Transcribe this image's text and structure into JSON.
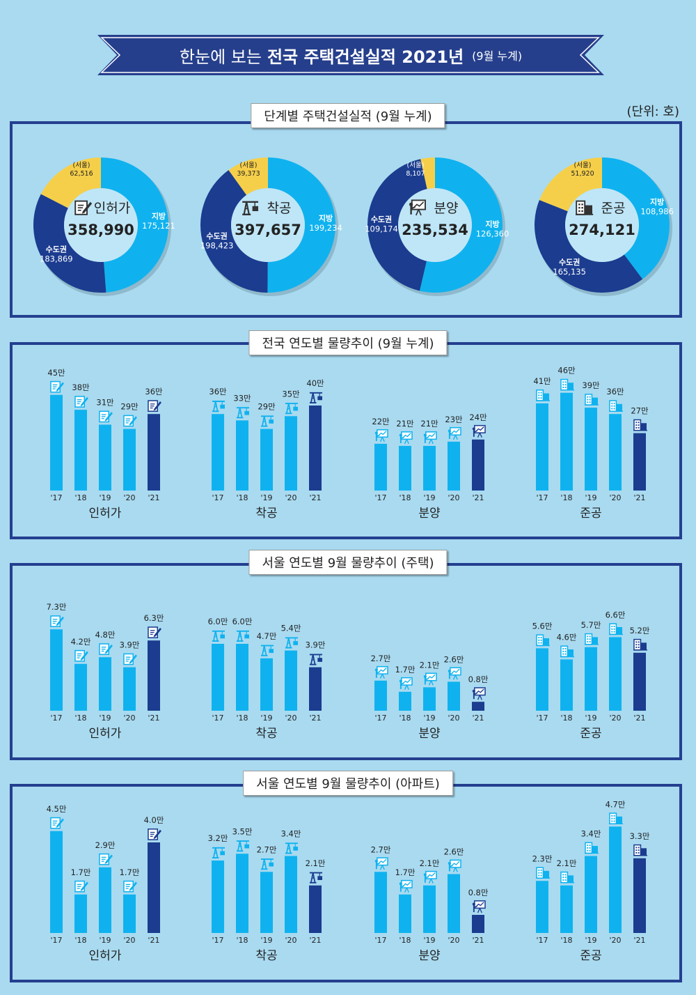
{
  "header": {
    "title_light": "한눈에 보는",
    "title_bold": "전국 주택건설실적 2021년",
    "title_note": "(9월 누계)",
    "unit": "(단위: 호)"
  },
  "colors": {
    "light": "#0fb2ef",
    "dark": "#1b3c8f",
    "seoul": "#f6cf4a",
    "border": "#243f8f",
    "background": "#a9daf0"
  },
  "donut_section": {
    "title": "단계별 주택건설실적 (9월 누계)",
    "seg_labels": {
      "seoul": "(서울)",
      "capital": "수도권",
      "regional": "지방"
    },
    "donuts": [
      {
        "name": "인허가",
        "icon": "permit-icon",
        "total": "358,990",
        "seoul": "62,516",
        "capital": "183,869",
        "regional": "175,121"
      },
      {
        "name": "착공",
        "icon": "crane-icon",
        "total": "397,657",
        "seoul": "39,373",
        "capital": "198,423",
        "regional": "199,234"
      },
      {
        "name": "분양",
        "icon": "presentation-icon",
        "total": "235,534",
        "seoul": "8,107",
        "capital": "109,174",
        "regional": "126,360"
      },
      {
        "name": "준공",
        "icon": "building-icon",
        "total": "274,121",
        "seoul": "51,920",
        "capital": "165,135",
        "regional": "108,986"
      }
    ]
  },
  "chart_data": [
    {
      "type": "donut",
      "title": "단계별 주택건설실적 (9월 누계)",
      "unit": "호",
      "charts": [
        {
          "name": "인허가",
          "total": 358990,
          "segments": [
            {
              "name": "수도권",
              "value": 183869,
              "sub": {
                "name": "서울",
                "value": 62516
              }
            },
            {
              "name": "지방",
              "value": 175121
            }
          ]
        },
        {
          "name": "착공",
          "total": 397657,
          "segments": [
            {
              "name": "수도권",
              "value": 198423,
              "sub": {
                "name": "서울",
                "value": 39373
              }
            },
            {
              "name": "지방",
              "value": 199234
            }
          ]
        },
        {
          "name": "분양",
          "total": 235534,
          "segments": [
            {
              "name": "수도권",
              "value": 109174,
              "sub": {
                "name": "서울",
                "value": 8107
              }
            },
            {
              "name": "지방",
              "value": 126360
            }
          ]
        },
        {
          "name": "준공",
          "total": 274121,
          "segments": [
            {
              "name": "수도권",
              "value": 165135,
              "sub": {
                "name": "서울",
                "value": 51920
              }
            },
            {
              "name": "지방",
              "value": 108986
            }
          ]
        }
      ]
    },
    {
      "type": "bar",
      "title": "전국 연도별 물량추이 (9월 누계)",
      "categories": [
        "'17",
        "'18",
        "'19",
        "'20",
        "'21"
      ],
      "unit": "만",
      "groups": [
        {
          "name": "인허가",
          "values": [
            45,
            38,
            31,
            29,
            36
          ],
          "labels": [
            "45만",
            "38만",
            "31만",
            "29만",
            "36만"
          ]
        },
        {
          "name": "착공",
          "values": [
            36,
            33,
            29,
            35,
            40
          ],
          "labels": [
            "36만",
            "33만",
            "29만",
            "35만",
            "40만"
          ]
        },
        {
          "name": "분양",
          "values": [
            22,
            21,
            21,
            23,
            24
          ],
          "labels": [
            "22만",
            "21만",
            "21만",
            "23만",
            "24만"
          ]
        },
        {
          "name": "준공",
          "values": [
            41,
            46,
            39,
            36,
            27
          ],
          "labels": [
            "41만",
            "46만",
            "39만",
            "36만",
            "27만"
          ]
        }
      ]
    },
    {
      "type": "bar",
      "title": "서울 연도별 9월  물량추이 (주택)",
      "categories": [
        "'17",
        "'18",
        "'19",
        "'20",
        "'21"
      ],
      "unit": "만",
      "groups": [
        {
          "name": "인허가",
          "values": [
            7.3,
            4.2,
            4.8,
            3.9,
            6.3
          ],
          "labels": [
            "7.3만",
            "4.2만",
            "4.8만",
            "3.9만",
            "6.3만"
          ]
        },
        {
          "name": "착공",
          "values": [
            6.0,
            6.0,
            4.7,
            5.4,
            3.9
          ],
          "labels": [
            "6.0만",
            "6.0만",
            "4.7만",
            "5.4만",
            "3.9만"
          ]
        },
        {
          "name": "분양",
          "values": [
            2.7,
            1.7,
            2.1,
            2.6,
            0.8
          ],
          "labels": [
            "2.7만",
            "1.7만",
            "2.1만",
            "2.6만",
            "0.8만"
          ]
        },
        {
          "name": "준공",
          "values": [
            5.6,
            4.6,
            5.7,
            6.6,
            5.2
          ],
          "labels": [
            "5.6만",
            "4.6만",
            "5.7만",
            "6.6만",
            "5.2만"
          ]
        }
      ]
    },
    {
      "type": "bar",
      "title": "서울 연도별 9월  물량추이 (아파트)",
      "categories": [
        "'17",
        "'18",
        "'19",
        "'20",
        "'21"
      ],
      "unit": "만",
      "groups": [
        {
          "name": "인허가",
          "values": [
            4.5,
            1.7,
            2.9,
            1.7,
            4.0
          ],
          "labels": [
            "4.5만",
            "1.7만",
            "2.9만",
            "1.7만",
            "4.0만"
          ]
        },
        {
          "name": "착공",
          "values": [
            3.2,
            3.5,
            2.7,
            3.4,
            2.1
          ],
          "labels": [
            "3.2만",
            "3.5만",
            "2.7만",
            "3.4만",
            "2.1만"
          ]
        },
        {
          "name": "분양",
          "values": [
            2.7,
            1.7,
            2.1,
            2.6,
            0.8
          ],
          "labels": [
            "2.7만",
            "1.7만",
            "2.1만",
            "2.6만",
            "0.8만"
          ]
        },
        {
          "name": "준공",
          "values": [
            2.3,
            2.1,
            3.4,
            4.7,
            3.3
          ],
          "labels": [
            "2.3만",
            "2.1만",
            "3.4만",
            "4.7만",
            "3.3만"
          ]
        }
      ]
    }
  ]
}
